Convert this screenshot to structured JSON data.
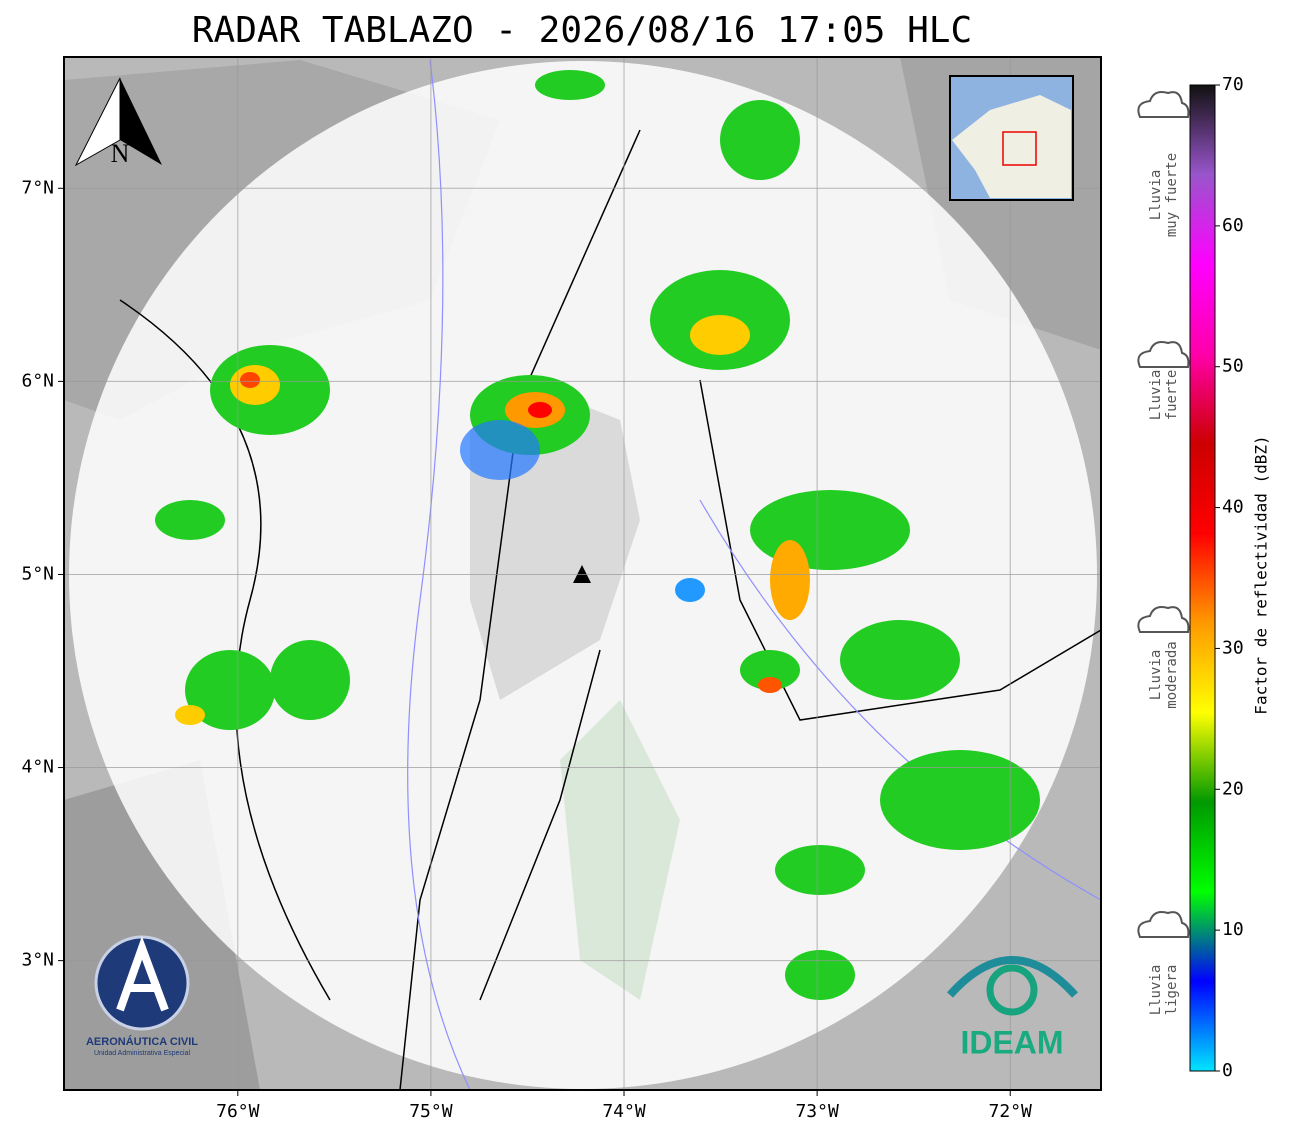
{
  "map": {
    "title": "RADAR TABLAZO - 2026/08/16 17:05 HLC",
    "lon_lim": [
      -76.9,
      -71.53
    ],
    "lat_lim": [
      2.33,
      7.68
    ],
    "lon_ticks": [
      {
        "value": -76,
        "label": "76°W"
      },
      {
        "value": -75,
        "label": "75°W"
      },
      {
        "value": -74,
        "label": "74°W"
      },
      {
        "value": -73,
        "label": "73°W"
      },
      {
        "value": -72,
        "label": "72°W"
      }
    ],
    "lat_ticks": [
      {
        "value": 3,
        "label": "3°N"
      },
      {
        "value": 4,
        "label": "4°N"
      },
      {
        "value": 5,
        "label": "5°N"
      },
      {
        "value": 6,
        "label": "6°N"
      },
      {
        "value": 7,
        "label": "7°N"
      }
    ],
    "grid": true,
    "north": "N",
    "colorbar": {
      "label": "Factor de reflectividad (dBZ)",
      "lim": [
        0,
        70
      ],
      "ticks": [
        0,
        10,
        20,
        30,
        40,
        50,
        60,
        70
      ],
      "colors": [
        "#00e5ff",
        "#0000ff",
        "#00ff00",
        "#009900",
        "#ffff00",
        "#ff9900",
        "#ff0000",
        "#cc0000",
        "#ff00aa",
        "#ff00ff",
        "#9955cc",
        "#111111"
      ]
    },
    "rain_levels": [
      {
        "lines": [
          "Lluvia",
          "muy fuerte"
        ]
      },
      {
        "lines": [
          "Lluvia",
          "fuerte"
        ]
      },
      {
        "lines": [
          "Lluvia",
          "moderada"
        ]
      },
      {
        "lines": [
          "Lluvia",
          "ligera"
        ]
      }
    ],
    "logos": {
      "aero": "AERONÁUTICA CIVIL",
      "aero_sub": "Unidad Administrativa Especial",
      "ideam": "IDEAM"
    }
  }
}
